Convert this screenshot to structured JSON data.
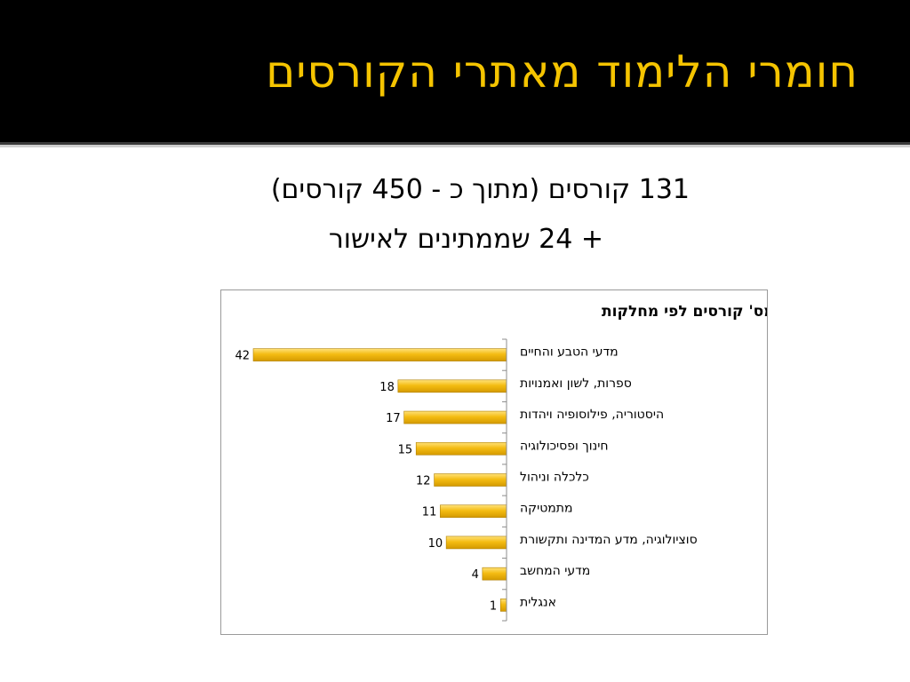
{
  "slide": {
    "title": "חומרי הלימוד מאתרי הקורסים",
    "line1": "131 קורסים (מתוך כ - 450 קורסים)",
    "line2": "+ 24 שממתינים לאישור",
    "colors": {
      "title": "#F5C400",
      "bar": "#F2B705",
      "background": "#000000"
    }
  },
  "chart_data": {
    "type": "bar",
    "orientation": "horizontal",
    "title": "מס' קורסים לפי מחלקות",
    "categories": [
      "מדעי הטבע והחיים",
      "ספרות, לשון ואמנויות",
      "היסטוריה, פילוסופיה ויהדות",
      "חינוך ופסיכולוגיה",
      "כלכלה וניהול",
      "מתמטיקה",
      "סוציולוגיה, מדע המדינה ותקשורת",
      "מדעי המחשב",
      "אנגלית"
    ],
    "values": [
      42,
      18,
      17,
      15,
      12,
      11,
      10,
      4,
      1
    ],
    "value_labels": [
      "42",
      "18",
      "17",
      "15",
      "12",
      "11",
      "10",
      "4",
      "1"
    ],
    "xlim": [
      0,
      42
    ],
    "grid": false,
    "legend": "none",
    "bar_direction": "right-to-left"
  }
}
